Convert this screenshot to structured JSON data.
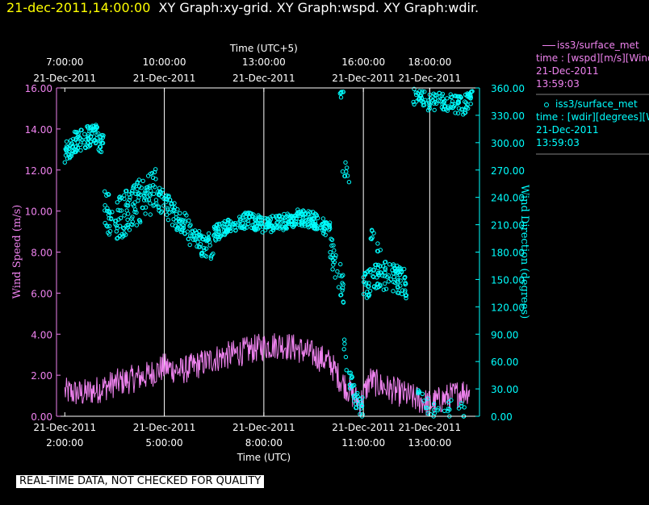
{
  "header": {
    "datetime": "21-dec-2011,14:00:00",
    "graphs": "XY Graph:xy-grid.  XY Graph:wspd.  XY Graph:wdir."
  },
  "legend": {
    "series1": {
      "name": "iss3/surface_met",
      "line": "time : [wspd][m/s][Wind",
      "date": "21-Dec-2011",
      "time": "13:59:03"
    },
    "series2": {
      "name": "iss3/surface_met",
      "line": "time : [wdir][degrees][Wi",
      "date": "21-Dec-2011",
      "time": "13:59:03"
    }
  },
  "notice": "REAL-TIME DATA, NOT CHECKED FOR QUALITY",
  "colors": {
    "speed": "#ee82ee",
    "direction": "#00ffff",
    "header_date": "#ffff00"
  },
  "chart_data": {
    "type": "line",
    "x_domain_utc_hours": [
      1.75,
      14.5
    ],
    "top_axis": {
      "title": "Time (UTC+5)",
      "ticks": [
        {
          "utc": 2,
          "time": "7:00:00",
          "date": "21-Dec-2011"
        },
        {
          "utc": 5,
          "time": "10:00:00",
          "date": "21-Dec-2011"
        },
        {
          "utc": 8,
          "time": "13:00:00",
          "date": "21-Dec-2011"
        },
        {
          "utc": 11,
          "time": "16:00:00",
          "date": "21-Dec-2011"
        },
        {
          "utc": 13,
          "time": "18:00:00",
          "date": "21-Dec-2011"
        }
      ]
    },
    "bottom_axis": {
      "title": "Time (UTC)",
      "ticks": [
        {
          "utc": 2,
          "date": "21-Dec-2011",
          "time": "2:00:00"
        },
        {
          "utc": 5,
          "date": "21-Dec-2011",
          "time": "5:00:00"
        },
        {
          "utc": 8,
          "date": "21-Dec-2011",
          "time": "8:00:00"
        },
        {
          "utc": 11,
          "date": "21-Dec-2011",
          "time": "11:00:00"
        },
        {
          "utc": 13,
          "date": "21-Dec-2011",
          "time": "13:00:00"
        }
      ]
    },
    "vertical_grid_utc": [
      5,
      8,
      11,
      13
    ],
    "left_axis": {
      "title": "Wind Speed (m/s)",
      "range": [
        0,
        16
      ],
      "ticks": [
        "0.00",
        "2.00",
        "4.00",
        "6.00",
        "8.00",
        "10.00",
        "12.00",
        "14.00",
        "16.00"
      ]
    },
    "right_axis": {
      "title": "Wind Direction (degrees)",
      "range": [
        0,
        360
      ],
      "ticks": [
        "0.00",
        "30.00",
        "60.00",
        "90.00",
        "120.00",
        "150.00",
        "180.00",
        "210.00",
        "240.00",
        "270.00",
        "300.00",
        "330.00",
        "360.00"
      ]
    },
    "speed_profile": {
      "x": [
        2.0,
        2.5,
        3.0,
        3.5,
        4.0,
        4.5,
        5.0,
        5.5,
        6.0,
        6.5,
        7.0,
        7.5,
        8.0,
        8.5,
        9.0,
        9.5,
        10.0,
        10.3,
        10.6,
        10.9,
        11.2,
        11.5,
        12.0,
        12.5,
        13.0,
        13.5,
        14.0,
        14.2
      ],
      "y": [
        1.2,
        1.1,
        1.3,
        1.6,
        1.8,
        2.0,
        2.4,
        2.2,
        2.5,
        2.8,
        3.0,
        3.2,
        3.4,
        3.5,
        3.3,
        3.0,
        2.6,
        1.8,
        1.2,
        0.6,
        1.8,
        1.5,
        1.2,
        0.9,
        0.6,
        0.9,
        1.2,
        1.3
      ],
      "noise": 0.7
    },
    "direction_clusters": [
      {
        "x": [
          2.0,
          2.3,
          2.6,
          2.9,
          3.2
        ],
        "y": [
          290,
          300,
          305,
          310,
          295
        ],
        "spread": 12,
        "n": 110
      },
      {
        "x": [
          3.2,
          3.6,
          4.0,
          4.4,
          4.8
        ],
        "y": [
          225,
          215,
          230,
          240,
          250
        ],
        "spread": 25,
        "n": 140
      },
      {
        "x": [
          4.8,
          5.2,
          5.6,
          6.0,
          6.5
        ],
        "y": [
          240,
          225,
          210,
          190,
          185
        ],
        "spread": 14,
        "n": 130
      },
      {
        "x": [
          6.5,
          7.0,
          7.5,
          8.0,
          8.5,
          9.0,
          9.5,
          10.0
        ],
        "y": [
          200,
          210,
          215,
          210,
          212,
          218,
          215,
          205
        ],
        "spread": 9,
        "n": 320
      },
      {
        "x": [
          10.0,
          10.2,
          10.4
        ],
        "y": [
          190,
          160,
          140
        ],
        "spread": 18,
        "n": 30
      },
      {
        "x": [
          10.4,
          10.6,
          10.8,
          11.0
        ],
        "y": [
          80,
          40,
          15,
          10
        ],
        "spread": 12,
        "n": 35
      },
      {
        "x": [
          11.0,
          11.5,
          12.0,
          12.3
        ],
        "y": [
          140,
          155,
          150,
          145
        ],
        "spread": 16,
        "n": 110
      },
      {
        "x": [
          11.2,
          11.6
        ],
        "y": [
          200,
          170
        ],
        "spread": 10,
        "n": 10
      },
      {
        "x": [
          12.5,
          12.8,
          13.2,
          13.8,
          14.2
        ],
        "y": [
          30,
          15,
          5,
          10,
          5
        ],
        "spread": 10,
        "n": 30
      },
      {
        "x": [
          12.5,
          13.0,
          13.5,
          14.0,
          14.3
        ],
        "y": [
          350,
          345,
          345,
          340,
          350
        ],
        "spread": 10,
        "n": 120
      },
      {
        "x": [
          10.2,
          10.4
        ],
        "y": [
          350,
          355
        ],
        "spread": 6,
        "n": 6
      },
      {
        "x": [
          10.3,
          10.6
        ],
        "y": [
          290,
          260
        ],
        "spread": 20,
        "n": 8
      }
    ]
  }
}
